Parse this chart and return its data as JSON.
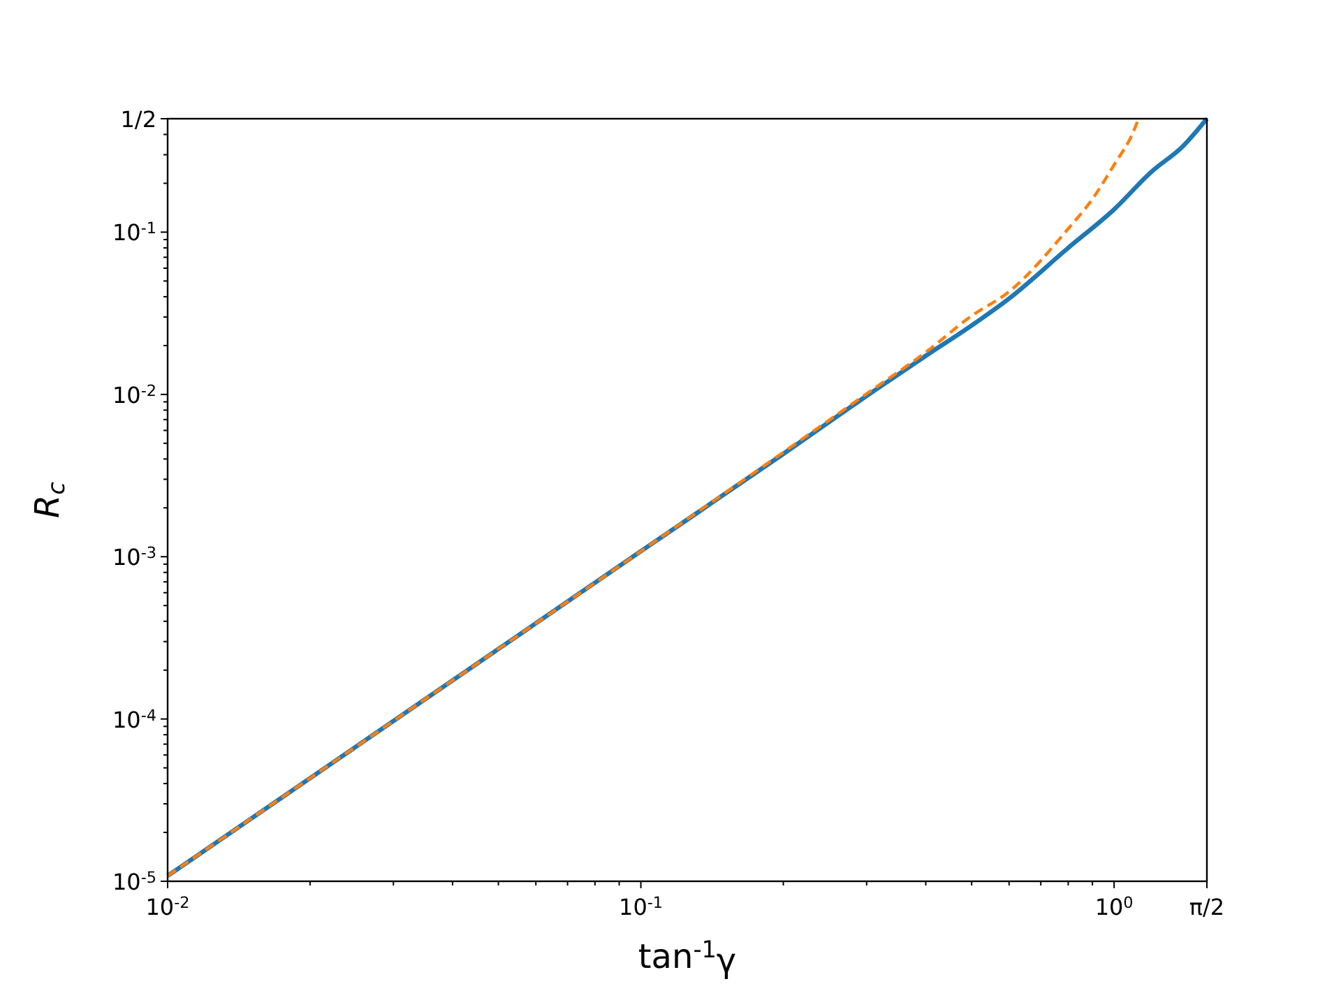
{
  "chart_data": {
    "type": "line",
    "xlabel": "tan$^{-1}$γ",
    "ylabel": "R$_{c}$",
    "log": "xy",
    "xlim": [
      0.01,
      1.5708
    ],
    "ylim": [
      1e-05,
      0.5
    ],
    "xticks": [
      {
        "value": 0.01,
        "label": "10$^{-2}$"
      },
      {
        "value": 0.02,
        "label": null
      },
      {
        "value": 0.03,
        "label": null
      },
      {
        "value": 0.04,
        "label": null
      },
      {
        "value": 0.05,
        "label": null
      },
      {
        "value": 0.06,
        "label": null
      },
      {
        "value": 0.07,
        "label": null
      },
      {
        "value": 0.08,
        "label": null
      },
      {
        "value": 0.09,
        "label": null
      },
      {
        "value": 0.1,
        "label": "10$^{-1}$"
      },
      {
        "value": 0.2,
        "label": null
      },
      {
        "value": 0.3,
        "label": null
      },
      {
        "value": 0.4,
        "label": null
      },
      {
        "value": 0.5,
        "label": null
      },
      {
        "value": 0.6,
        "label": null
      },
      {
        "value": 0.7,
        "label": null
      },
      {
        "value": 0.8,
        "label": null
      },
      {
        "value": 0.9,
        "label": null
      },
      {
        "value": 1,
        "label": "10$^{0}$"
      },
      {
        "value": 1.5708,
        "label": "π/2"
      }
    ],
    "yticks": [
      {
        "value": 1e-05,
        "label": "10$^{-5}$"
      },
      {
        "value": 2e-05,
        "label": null
      },
      {
        "value": 3e-05,
        "label": null
      },
      {
        "value": 4e-05,
        "label": null
      },
      {
        "value": 5e-05,
        "label": null
      },
      {
        "value": 6e-05,
        "label": null
      },
      {
        "value": 7e-05,
        "label": null
      },
      {
        "value": 8e-05,
        "label": null
      },
      {
        "value": 9e-05,
        "label": null
      },
      {
        "value": 0.0001,
        "label": "10$^{-4}$"
      },
      {
        "value": 0.0002,
        "label": null
      },
      {
        "value": 0.0003,
        "label": null
      },
      {
        "value": 0.0004,
        "label": null
      },
      {
        "value": 0.0005,
        "label": null
      },
      {
        "value": 0.0006,
        "label": null
      },
      {
        "value": 0.0007,
        "label": null
      },
      {
        "value": 0.0008,
        "label": null
      },
      {
        "value": 0.0009,
        "label": null
      },
      {
        "value": 0.001,
        "label": "10$^{-3}$"
      },
      {
        "value": 0.002,
        "label": null
      },
      {
        "value": 0.003,
        "label": null
      },
      {
        "value": 0.004,
        "label": null
      },
      {
        "value": 0.005,
        "label": null
      },
      {
        "value": 0.006,
        "label": null
      },
      {
        "value": 0.007,
        "label": null
      },
      {
        "value": 0.008,
        "label": null
      },
      {
        "value": 0.009,
        "label": null
      },
      {
        "value": 0.01,
        "label": "10$^{-2}$"
      },
      {
        "value": 0.02,
        "label": null
      },
      {
        "value": 0.03,
        "label": null
      },
      {
        "value": 0.04,
        "label": null
      },
      {
        "value": 0.05,
        "label": null
      },
      {
        "value": 0.06,
        "label": null
      },
      {
        "value": 0.07,
        "label": null
      },
      {
        "value": 0.08,
        "label": null
      },
      {
        "value": 0.09,
        "label": null
      },
      {
        "value": 0.1,
        "label": "10$^{-1}$"
      },
      {
        "value": 0.2,
        "label": null
      },
      {
        "value": 0.3,
        "label": null
      },
      {
        "value": 0.4,
        "label": null
      },
      {
        "value": 0.5,
        "label": "1/2"
      }
    ],
    "series": [
      {
        "color": "#1f77b4",
        "line_style": "solid",
        "x": [
          0.01,
          0.02,
          0.05,
          0.1,
          0.2,
          0.3,
          0.4,
          0.5,
          0.6,
          0.8,
          1.0,
          1.2,
          1.4,
          1.5708
        ],
        "values": [
          1.08e-05,
          4.32e-05,
          0.00027,
          0.00108,
          0.0043,
          0.0098,
          0.0173,
          0.0266,
          0.039,
          0.08,
          0.138,
          0.236,
          0.34,
          0.5
        ]
      },
      {
        "color": "#ff7f0e",
        "line_style": "dashed",
        "x": [
          0.01,
          0.02,
          0.05,
          0.1,
          0.2,
          0.3,
          0.4,
          0.5,
          0.6,
          0.8,
          0.9,
          1.0,
          1.1,
          1.126
        ],
        "values": [
          1.08e-05,
          4.32e-05,
          0.00027,
          0.00108,
          0.0044,
          0.0101,
          0.0182,
          0.0305,
          0.043,
          0.105,
          0.16,
          0.26,
          0.42,
          0.5
        ]
      }
    ]
  }
}
